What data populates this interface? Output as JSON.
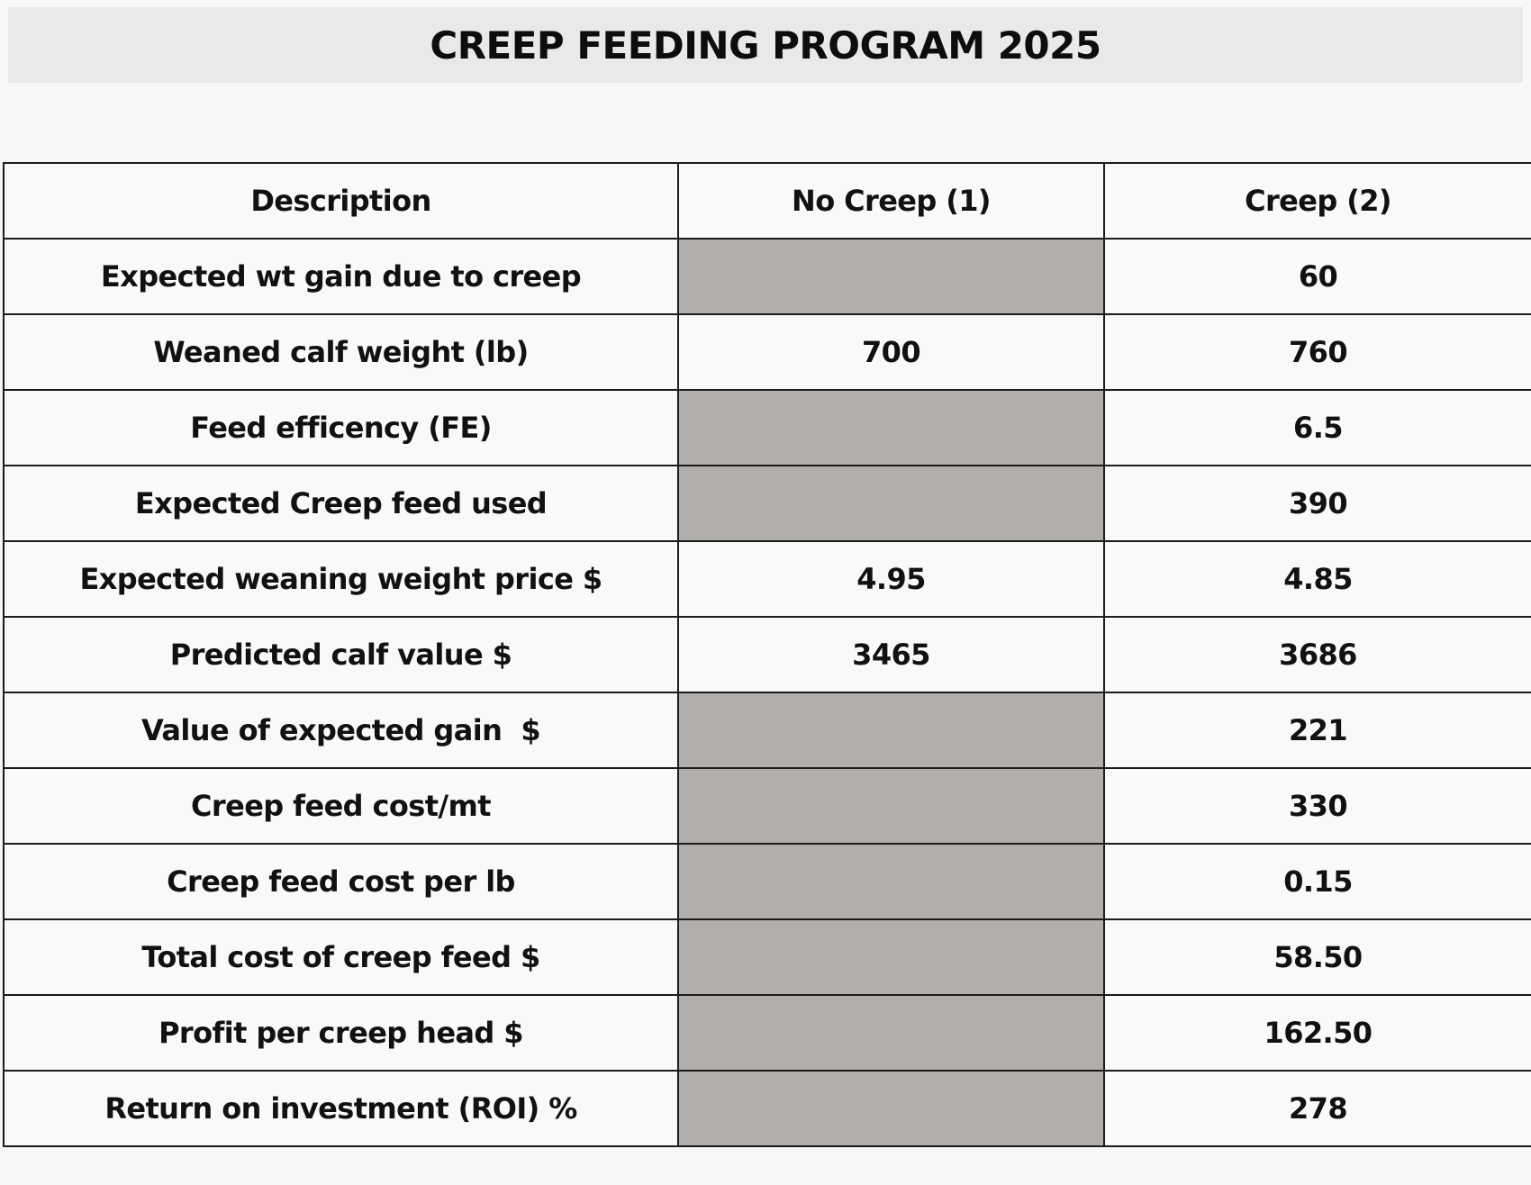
{
  "title": "CREEP FEEDING PROGRAM 2025",
  "colors": {
    "shaded_cell": "#b1aeac",
    "title_band": "#e9e9e9",
    "grid_line": "#1b1b1b"
  },
  "table": {
    "headers": [
      "Description",
      "No Creep (1)",
      "Creep (2)"
    ],
    "rows": [
      {
        "description": "Expected wt gain due to creep",
        "no_creep": "",
        "no_creep_shaded": true,
        "creep": "60"
      },
      {
        "description": "Weaned calf weight (lb)",
        "no_creep": "700",
        "no_creep_shaded": false,
        "creep": "760"
      },
      {
        "description": "Feed efficency (FE)",
        "no_creep": "",
        "no_creep_shaded": true,
        "creep": "6.5"
      },
      {
        "description": "Expected Creep feed used",
        "no_creep": "",
        "no_creep_shaded": true,
        "creep": "390"
      },
      {
        "description": "Expected weaning weight price $",
        "no_creep": "4.95",
        "no_creep_shaded": false,
        "creep": "4.85"
      },
      {
        "description": "Predicted calf value $",
        "no_creep": "3465",
        "no_creep_shaded": false,
        "creep": "3686"
      },
      {
        "description": "Value of expected gain  $",
        "no_creep": "",
        "no_creep_shaded": true,
        "creep": "221"
      },
      {
        "description": "Creep feed cost/mt",
        "no_creep": "",
        "no_creep_shaded": true,
        "creep": "330"
      },
      {
        "description": "Creep feed cost per lb",
        "no_creep": "",
        "no_creep_shaded": true,
        "creep": "0.15"
      },
      {
        "description": "Total cost of creep feed $",
        "no_creep": "",
        "no_creep_shaded": true,
        "creep": "58.50"
      },
      {
        "description": "Profit per creep head $",
        "no_creep": "",
        "no_creep_shaded": true,
        "creep": "162.50"
      },
      {
        "description": "Return on investment (ROI) %",
        "no_creep": "",
        "no_creep_shaded": true,
        "creep": "278"
      }
    ]
  }
}
